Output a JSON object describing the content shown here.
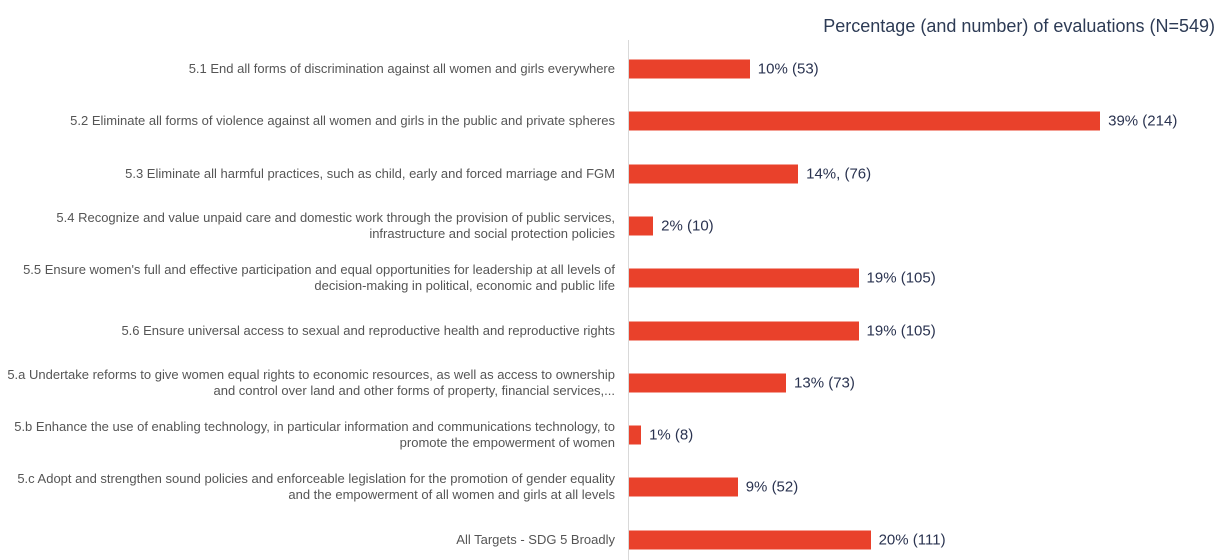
{
  "chart_data": {
    "type": "bar",
    "orientation": "horizontal",
    "title": "Percentage (and number) of evaluations (N=549)",
    "categories": [
      "5.1 End all forms of discrimination against all women and girls everywhere",
      "5.2 Eliminate all forms of violence against all women and girls in the public and private spheres",
      "5.3 Eliminate all harmful practices, such as child, early and forced marriage and FGM",
      "5.4 Recognize and value unpaid care and domestic work through the provision of public services, infrastructure and social protection policies",
      "5.5 Ensure women's full and effective participation and equal opportunities for leadership at all levels of decision-making in political, economic and public life",
      "5.6 Ensure universal access to sexual and reproductive health and reproductive rights",
      "5.a Undertake reforms to give women equal rights to economic resources, as well as access to ownership and control over land and other forms of property, financial services,...",
      "5.b Enhance the use of enabling technology, in particular information and communications technology, to promote the empowerment of women",
      "5.c Adopt and strengthen sound policies and enforceable legislation for the promotion of gender equality and the empowerment of all women and girls at all levels",
      "All Targets - SDG 5 Broadly"
    ],
    "values": [
      10,
      39,
      14,
      2,
      19,
      19,
      13,
      1,
      9,
      20
    ],
    "value_labels": [
      "10% (53)",
      "39% (214)",
      "14%, (76)",
      "2% (10)",
      "19% (105)",
      "19% (105)",
      "13% (73)",
      "1% (8)",
      "9% (52)",
      "20% (111)"
    ],
    "color": "#e9412b"
  }
}
